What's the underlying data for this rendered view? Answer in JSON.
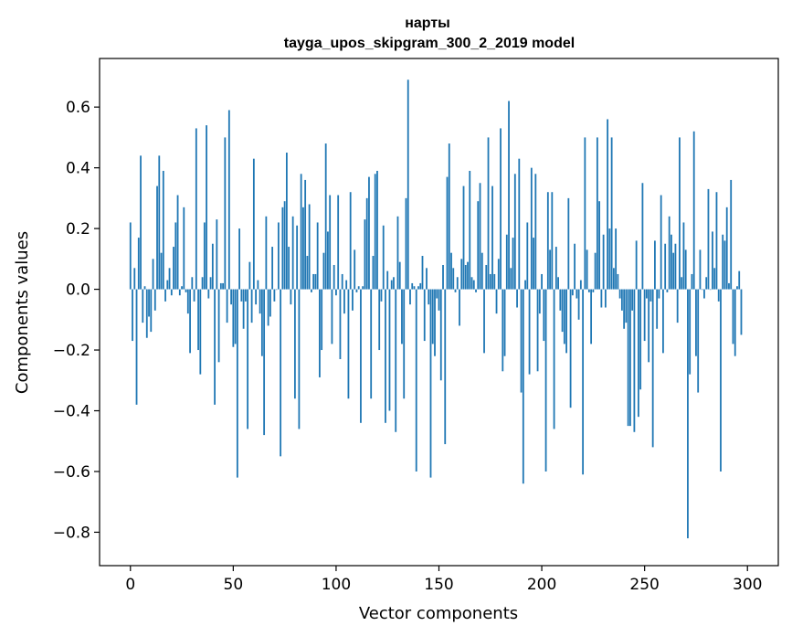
{
  "chart_data": {
    "type": "bar",
    "title_line1": "нарты",
    "title_line2": "tayga_upos_skipgram_300_2_2019 model",
    "xlabel": "Vector components",
    "ylabel": "Components values",
    "xlim": [
      -15,
      315
    ],
    "ylim": [
      -0.91,
      0.76
    ],
    "xticks": [
      0,
      50,
      100,
      150,
      200,
      250,
      300
    ],
    "xtick_labels": [
      "0",
      "50",
      "100",
      "150",
      "200",
      "250",
      "300"
    ],
    "yticks": [
      -0.8,
      -0.6,
      -0.4,
      -0.2,
      0.0,
      0.2,
      0.4,
      0.6
    ],
    "ytick_labels": [
      "−0.8",
      "−0.6",
      "−0.4",
      "−0.2",
      "0.0",
      "0.2",
      "0.4",
      "0.6"
    ],
    "bar_color": "#1f77b4",
    "values": [
      0.22,
      -0.17,
      0.07,
      -0.38,
      0.17,
      0.44,
      -0.11,
      0.01,
      -0.16,
      -0.09,
      -0.14,
      0.1,
      -0.07,
      0.34,
      0.44,
      0.12,
      0.39,
      -0.04,
      0.03,
      0.07,
      -0.02,
      0.14,
      0.22,
      0.31,
      -0.02,
      0.01,
      0.27,
      -0.01,
      -0.08,
      -0.21,
      0.04,
      -0.04,
      0.53,
      -0.2,
      -0.28,
      0.04,
      0.22,
      0.54,
      -0.03,
      0.04,
      0.15,
      -0.38,
      0.23,
      -0.24,
      0.02,
      0.02,
      0.5,
      -0.11,
      0.59,
      -0.05,
      -0.19,
      -0.18,
      -0.62,
      0.2,
      -0.04,
      -0.13,
      -0.04,
      -0.46,
      0.09,
      -0.11,
      0.43,
      -0.05,
      0.03,
      -0.08,
      -0.22,
      -0.48,
      0.24,
      -0.12,
      -0.09,
      0.14,
      -0.04,
      0.0,
      0.22,
      -0.55,
      0.27,
      0.29,
      0.45,
      0.14,
      -0.05,
      0.24,
      -0.36,
      0.21,
      -0.46,
      0.38,
      0.27,
      0.36,
      0.11,
      0.28,
      -0.01,
      0.05,
      0.05,
      0.22,
      -0.29,
      -0.2,
      0.12,
      0.48,
      0.19,
      0.31,
      -0.18,
      0.08,
      -0.02,
      0.31,
      -0.23,
      0.05,
      -0.08,
      0.03,
      -0.36,
      0.32,
      -0.07,
      0.13,
      -0.01,
      0.01,
      -0.44,
      0.01,
      0.23,
      0.3,
      0.37,
      -0.36,
      0.11,
      0.38,
      0.39,
      -0.2,
      -0.04,
      0.21,
      -0.44,
      0.06,
      -0.4,
      0.03,
      0.04,
      -0.47,
      0.24,
      0.09,
      -0.18,
      -0.36,
      0.3,
      0.69,
      -0.05,
      0.02,
      0.01,
      -0.6,
      0.01,
      0.02,
      0.11,
      -0.17,
      0.07,
      -0.05,
      -0.62,
      -0.18,
      -0.22,
      -0.03,
      -0.07,
      -0.3,
      0.08,
      -0.51,
      0.37,
      0.48,
      0.12,
      0.07,
      -0.01,
      0.04,
      -0.12,
      0.1,
      0.34,
      0.08,
      0.09,
      0.39,
      0.04,
      0.03,
      -0.01,
      0.29,
      0.35,
      0.12,
      -0.21,
      0.08,
      0.5,
      0.05,
      0.34,
      0.05,
      -0.08,
      0.1,
      0.53,
      -0.27,
      -0.22,
      0.18,
      0.62,
      0.07,
      0.17,
      0.38,
      -0.06,
      0.43,
      -0.34,
      -0.64,
      0.03,
      0.22,
      -0.28,
      0.4,
      0.17,
      0.38,
      -0.27,
      -0.08,
      0.05,
      -0.17,
      -0.6,
      0.32,
      0.13,
      0.32,
      -0.46,
      0.14,
      0.04,
      -0.07,
      -0.14,
      -0.18,
      -0.21,
      0.3,
      -0.39,
      -0.02,
      0.15,
      -0.03,
      -0.1,
      0.03,
      -0.61,
      0.5,
      0.13,
      -0.01,
      -0.18,
      -0.01,
      0.12,
      0.5,
      0.29,
      -0.06,
      0.18,
      -0.06,
      0.56,
      0.2,
      0.5,
      0.07,
      0.2,
      0.05,
      -0.03,
      -0.07,
      -0.13,
      -0.11,
      -0.45,
      -0.45,
      -0.07,
      -0.47,
      0.16,
      -0.42,
      -0.33,
      0.35,
      -0.17,
      -0.03,
      -0.24,
      -0.04,
      -0.52,
      0.16,
      -0.13,
      -0.03,
      0.31,
      -0.21,
      0.15,
      -0.01,
      0.24,
      0.18,
      0.12,
      0.15,
      -0.11,
      0.5,
      0.04,
      0.22,
      0.13,
      -0.82,
      -0.28,
      0.05,
      0.52,
      -0.22,
      -0.34,
      0.13,
      0.0,
      -0.03,
      0.04,
      0.33,
      0.0,
      0.19,
      0.07,
      0.32,
      -0.04,
      -0.6,
      0.18,
      0.16,
      0.27,
      0.02,
      0.36,
      -0.18,
      -0.22,
      0.01,
      0.06,
      -0.15
    ]
  }
}
